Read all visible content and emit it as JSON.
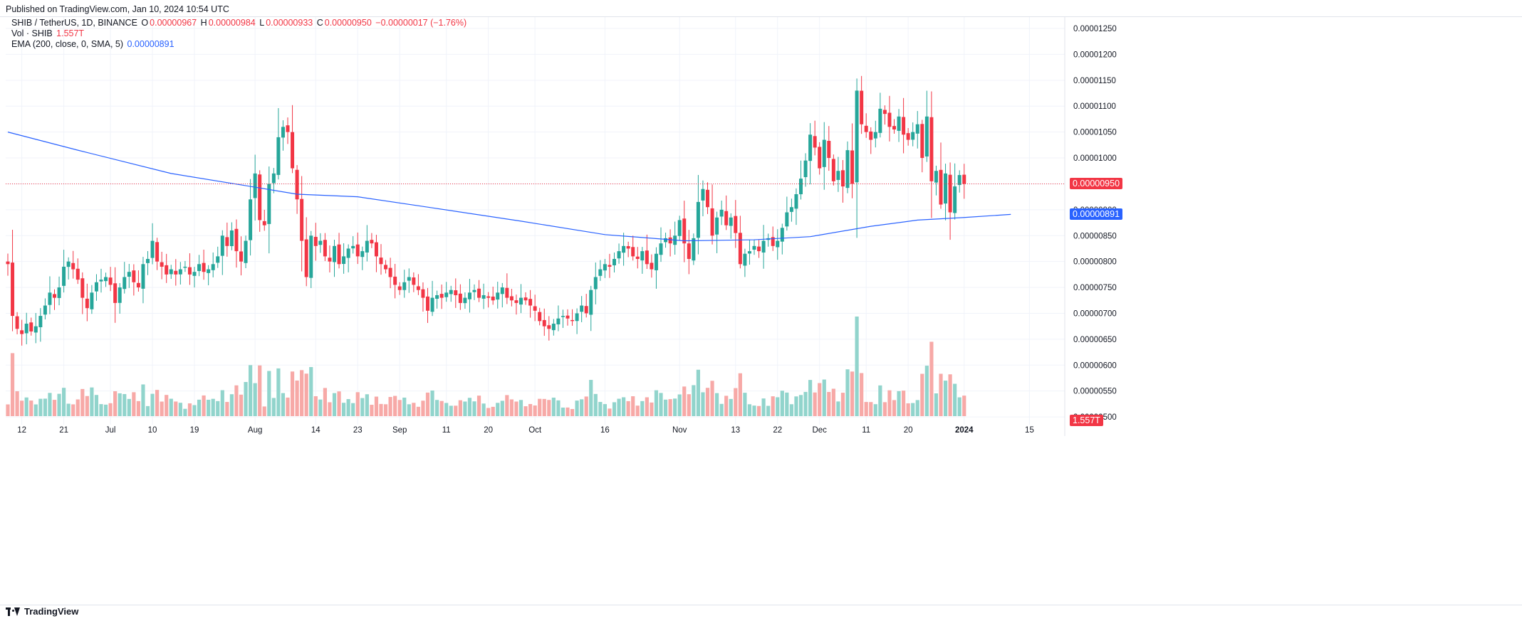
{
  "header": {
    "published": "Published on TradingView.com, Jan 10, 2024 10:54 UTC"
  },
  "legend": {
    "symbol": "SHIB / TetherUS, 1D, BINANCE",
    "ohlc_open_label": "O",
    "ohlc_open": "0.00000967",
    "ohlc_high_label": "H",
    "ohlc_high": "0.00000984",
    "ohlc_low_label": "L",
    "ohlc_low": "0.00000933",
    "ohlc_close_label": "C",
    "ohlc_close": "0.00000950",
    "ohlc_change": "−0.00000017 (−1.76%)",
    "vol_label": "Vol · SHIB",
    "vol_value": "1.557T",
    "ema_label": "EMA (200, close, 0, SMA, 5)",
    "ema_value": "0.00000891"
  },
  "price_badges": {
    "last_price": "0.00000950",
    "ema": "0.00000891",
    "volume": "1.557T"
  },
  "footer": {
    "brand": "TradingView"
  },
  "colors": {
    "up": "#26a69a",
    "down": "#f23645",
    "vol_up": "#91d4cc",
    "vol_down": "#f7a9a7",
    "ema": "#2962ff",
    "grid": "#f0f3fa"
  },
  "chart_data": {
    "type": "candlestick",
    "symbol": "SHIB / TetherUS",
    "interval": "1D",
    "y_ticks": [
      "0.00001250",
      "0.00001200",
      "0.00001150",
      "0.00001100",
      "0.00001050",
      "0.00001000",
      "0.00000950",
      "0.00000900",
      "0.00000850",
      "0.00000800",
      "0.00000750",
      "0.00000700",
      "0.00000650",
      "0.00000600",
      "0.00000550",
      "0.00000500"
    ],
    "ylim": [
      4.85e-06,
      1.272e-05
    ],
    "x_ticks": [
      {
        "label": "12",
        "index": 3
      },
      {
        "label": "21",
        "index": 12
      },
      {
        "label": "Jul",
        "index": 22
      },
      {
        "label": "10",
        "index": 31
      },
      {
        "label": "19",
        "index": 40
      },
      {
        "label": "Aug",
        "index": 53
      },
      {
        "label": "14",
        "index": 66
      },
      {
        "label": "23",
        "index": 75
      },
      {
        "label": "Sep",
        "index": 84
      },
      {
        "label": "11",
        "index": 94
      },
      {
        "label": "20",
        "index": 103
      },
      {
        "label": "Oct",
        "index": 113
      },
      {
        "label": "16",
        "index": 128
      },
      {
        "label": "Nov",
        "index": 144
      },
      {
        "label": "13",
        "index": 156
      },
      {
        "label": "22",
        "index": 165
      },
      {
        "label": "Dec",
        "index": 174
      },
      {
        "label": "11",
        "index": 184
      },
      {
        "label": "20",
        "index": 193
      },
      {
        "label": "2024",
        "index": 205
      },
      {
        "label": "15",
        "index": 219
      }
    ],
    "close": [
      7.95,
      6.95,
      6.7,
      6.6,
      6.8,
      6.65,
      6.75,
      6.95,
      7.15,
      7.4,
      7.3,
      7.5,
      7.9,
      8.0,
      7.85,
      7.65,
      7.3,
      7.1,
      7.4,
      7.6,
      7.65,
      7.7,
      7.55,
      7.2,
      7.5,
      7.7,
      7.8,
      7.6,
      7.5,
      7.95,
      8.05,
      8.4,
      8.0,
      7.9,
      7.75,
      7.85,
      7.75,
      7.85,
      7.9,
      7.75,
      7.8,
      7.95,
      7.8,
      7.85,
      7.95,
      8.1,
      8.5,
      8.3,
      8.6,
      8.2,
      8.0,
      8.4,
      9.2,
      9.7,
      8.8,
      8.7,
      9.5,
      9.7,
      10.4,
      10.6,
      10.5,
      9.8,
      9.2,
      8.4,
      7.7,
      8.5,
      8.3,
      8.4,
      8.1,
      8.0,
      8.3,
      7.95,
      8.1,
      8.25,
      8.3,
      8.1,
      8.2,
      8.4,
      8.35,
      8.1,
      7.95,
      7.85,
      7.7,
      7.55,
      7.45,
      7.6,
      7.7,
      7.55,
      7.45,
      7.3,
      7.05,
      7.3,
      7.35,
      7.3,
      7.4,
      7.45,
      7.35,
      7.2,
      7.3,
      7.4,
      7.45,
      7.3,
      7.35,
      7.3,
      7.25,
      7.4,
      7.5,
      7.3,
      7.25,
      7.2,
      7.3,
      7.25,
      7.15,
      7.05,
      6.85,
      6.75,
      6.7,
      6.8,
      6.9,
      6.95,
      6.9,
      6.85,
      7.0,
      7.15,
      7.0,
      7.45,
      7.7,
      7.85,
      7.95,
      7.9,
      8.05,
      8.2,
      8.3,
      8.25,
      8.1,
      8.05,
      8.2,
      7.95,
      7.85,
      8.15,
      8.35,
      8.45,
      8.35,
      8.5,
      8.8,
      8.35,
      8.05,
      8.45,
      9.15,
      9.4,
      9.05,
      8.5,
      8.85,
      9.0,
      8.7,
      8.85,
      8.55,
      7.95,
      8.15,
      8.2,
      8.3,
      8.2,
      8.4,
      8.45,
      8.3,
      8.4,
      8.65,
      8.95,
      9.05,
      9.3,
      9.6,
      9.95,
      10.45,
      10.2,
      9.8,
      10.35,
      10.0,
      9.55,
      9.75,
      9.45,
      10.15,
      9.5,
      11.3,
      10.65,
      10.5,
      10.35,
      10.5,
      10.95,
      10.85,
      10.6,
      10.55,
      10.8,
      10.45,
      10.35,
      10.5,
      10.65,
      10.0,
      10.8,
      9.55,
      9.75,
      9.1,
      9.7,
      8.95,
      9.45,
      9.67,
      9.5
    ],
    "ema_200": [
      {
        "index": 0,
        "value": 10.5
      },
      {
        "index": 15,
        "value": 10.15
      },
      {
        "index": 35,
        "value": 9.7
      },
      {
        "index": 52,
        "value": 9.45
      },
      {
        "index": 62,
        "value": 9.3
      },
      {
        "index": 75,
        "value": 9.25
      },
      {
        "index": 90,
        "value": 9.05
      },
      {
        "index": 110,
        "value": 8.78
      },
      {
        "index": 128,
        "value": 8.52
      },
      {
        "index": 145,
        "value": 8.4
      },
      {
        "index": 160,
        "value": 8.42
      },
      {
        "index": 172,
        "value": 8.48
      },
      {
        "index": 185,
        "value": 8.68
      },
      {
        "index": 195,
        "value": 8.8
      },
      {
        "index": 205,
        "value": 8.85
      },
      {
        "index": 215,
        "value": 8.91
      }
    ],
    "volume_note": "volume histogram bars under candles, coloured by candle direction",
    "last": {
      "open": 9.67,
      "high": 9.84,
      "low": 9.33,
      "close": 9.5,
      "change": -0.17,
      "change_pct": -1.76,
      "volume": "1.557T",
      "ema": 8.91
    },
    "units_note": "prices stored in units of 1e-6 USDT"
  }
}
